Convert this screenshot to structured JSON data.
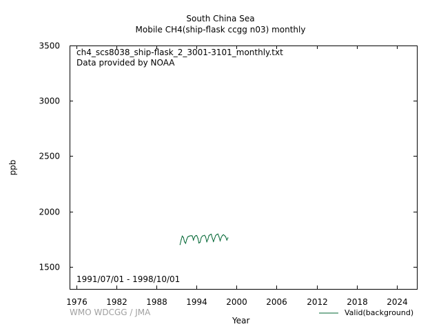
{
  "chart_data": {
    "type": "line",
    "title_line1": "South China Sea",
    "title_line2": "Mobile    CH4(ship-flask ccgg n03) monthly",
    "annotation_file": "ch4_scs8038_ship-flask_2_3001-3101_monthly.txt",
    "annotation_provider": "Data provided by NOAA",
    "annotation_period": "1991/07/01 - 1998/10/01",
    "xlabel": "Year",
    "ylabel": "ppb",
    "xlim": [
      1975,
      2027
    ],
    "ylim": [
      1300,
      3500
    ],
    "xticks": [
      1976,
      1982,
      1988,
      1994,
      2000,
      2006,
      2012,
      2018,
      2024
    ],
    "yticks": [
      1500,
      2000,
      2500,
      3000,
      3500
    ],
    "grid": false,
    "legend_position": "bottom-right",
    "series": [
      {
        "name": "Valid(background)",
        "color": "#006633",
        "x": [
          1991.54,
          1991.71,
          1991.87,
          1992.04,
          1992.21,
          1992.37,
          1992.54,
          1992.71,
          1992.87,
          1993.04,
          1993.21,
          1993.37,
          1993.54,
          1993.71,
          1993.87,
          1994.04,
          1994.21,
          1994.37,
          1994.54,
          1994.71,
          1994.87,
          1995.04,
          1995.21,
          1995.37,
          1995.54,
          1995.71,
          1995.87,
          1996.04,
          1996.21,
          1996.37,
          1996.54,
          1996.71,
          1996.87,
          1997.04,
          1997.21,
          1997.37,
          1997.54,
          1997.71,
          1997.87,
          1998.04,
          1998.21,
          1998.37,
          1998.54,
          1998.71
        ],
        "y": [
          1700,
          1745,
          1778,
          1765,
          1725,
          1712,
          1748,
          1772,
          1776,
          1780,
          1781,
          1779,
          1742,
          1770,
          1781,
          1783,
          1758,
          1715,
          1722,
          1762,
          1778,
          1781,
          1785,
          1770,
          1726,
          1748,
          1782,
          1790,
          1795,
          1760,
          1728,
          1755,
          1783,
          1792,
          1796,
          1771,
          1735,
          1765,
          1783,
          1790,
          1781,
          1771,
          1742,
          1762
        ]
      }
    ]
  },
  "footer": {
    "credit": "WMO WDCGG / JMA"
  }
}
